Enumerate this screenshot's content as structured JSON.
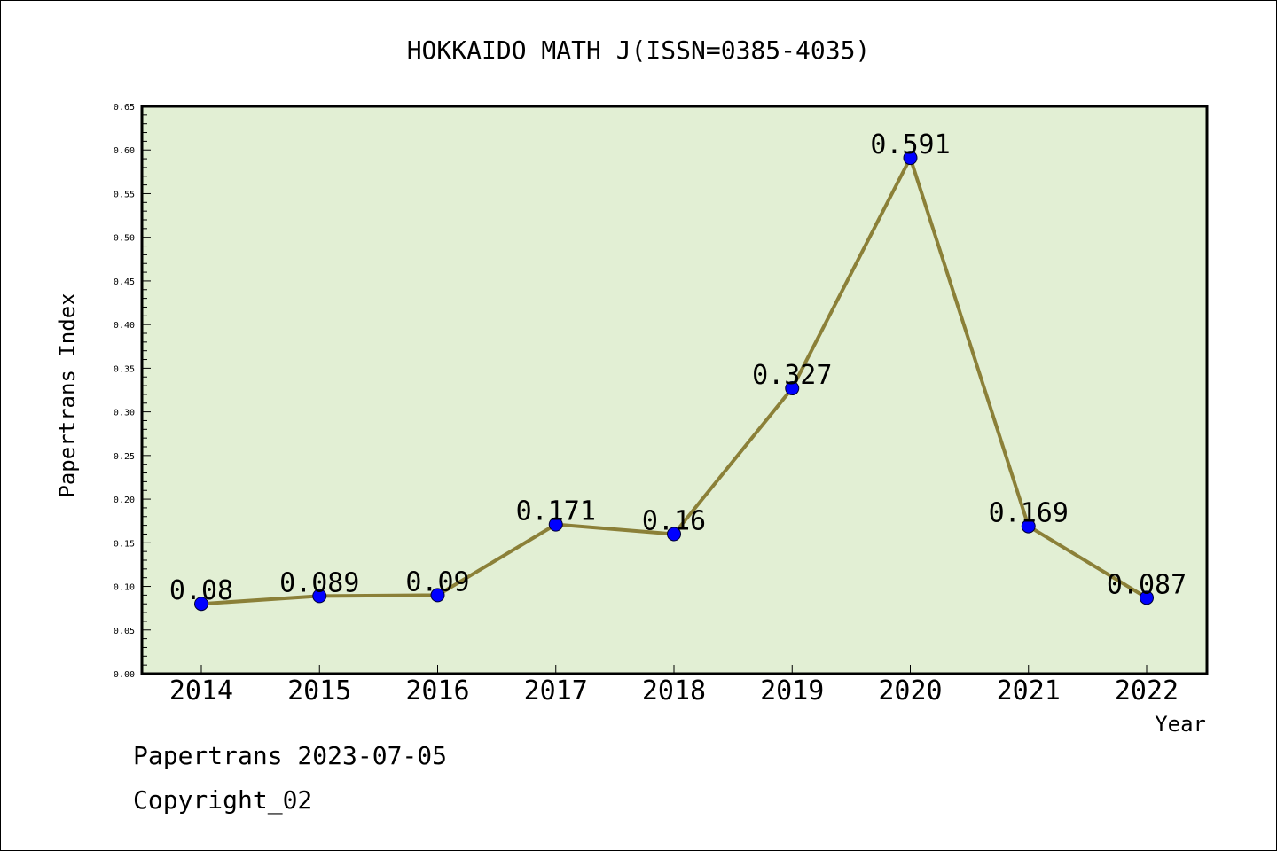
{
  "chart_data": {
    "type": "line",
    "title": "HOKKAIDO MATH J(ISSN=0385-4035)",
    "xlabel": "Year",
    "ylabel": "Papertrans Index",
    "categories": [
      "2014",
      "2015",
      "2016",
      "2017",
      "2018",
      "2019",
      "2020",
      "2021",
      "2022"
    ],
    "values": [
      0.08,
      0.089,
      0.09,
      0.171,
      0.16,
      0.327,
      0.591,
      0.169,
      0.087
    ],
    "data_labels": [
      "0.08",
      "0.089",
      "0.09",
      "0.171",
      "0.16",
      "0.327",
      "0.591",
      "0.169",
      "0.087"
    ],
    "yticks": [
      "0.00",
      "0.05",
      "0.10",
      "0.15",
      "0.20",
      "0.25",
      "0.30",
      "0.35",
      "0.40",
      "0.45",
      "0.50",
      "0.55",
      "0.60",
      "0.65"
    ],
    "ylim": [
      0,
      0.65
    ],
    "grid": false,
    "colors": {
      "plot_background": "#e2efd4",
      "line": "#8b8038",
      "marker": "#0000ff"
    }
  },
  "footer": {
    "line1": "Papertrans 2023-07-05",
    "line2": "Copyright_02"
  }
}
